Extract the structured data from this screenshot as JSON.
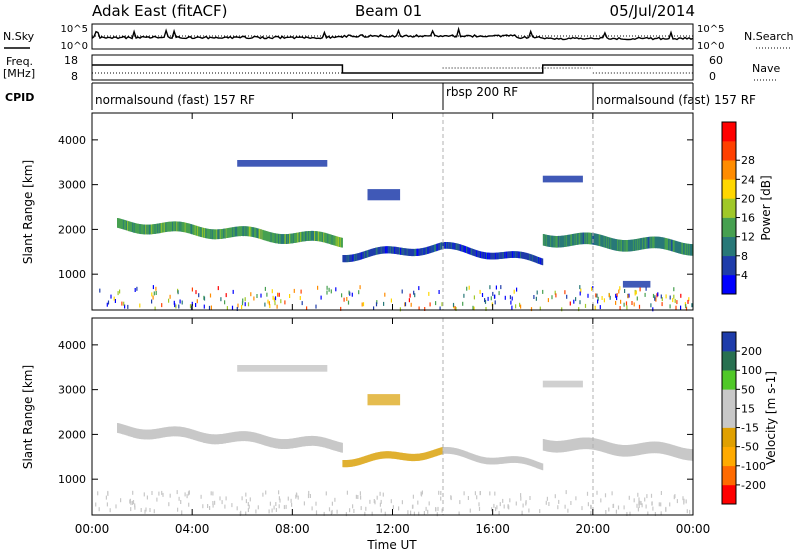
{
  "header": {
    "radar": "Adak East (fitACF)",
    "beam": "Beam 01",
    "date": "05/Jul/2014"
  },
  "labels": {
    "nsky": "N.Sky",
    "nsearch": "N.Search",
    "freq": "Freq.",
    "freq_unit": "[MHz]",
    "nave": "Nave",
    "cpid": "CPID"
  },
  "cpid_segments": [
    {
      "label": "normalsound (fast) 157 RF",
      "start_h": 0,
      "end_h": 14
    },
    {
      "label": "rbsp 200 RF",
      "start_h": 14,
      "end_h": 20
    },
    {
      "label": "normalsound (fast) 157 RF",
      "start_h": 20,
      "end_h": 24
    }
  ],
  "noise_axis": {
    "ticks": [
      "10^5",
      "10^0"
    ]
  },
  "freq_axis": {
    "left_ticks": [
      "18",
      "8"
    ],
    "right_ticks": [
      "60",
      "0"
    ]
  },
  "time_axis": {
    "label": "Time UT",
    "ticks": [
      "00:00",
      "04:00",
      "08:00",
      "12:00",
      "16:00",
      "20:00",
      "00:00"
    ]
  },
  "colors": {
    "power": [
      "#0000ff",
      "#1e3caa",
      "#287878",
      "#46a050",
      "#a0c828",
      "#ffd700",
      "#ff8c00",
      "#ff4000",
      "#ff0000"
    ],
    "velocity": [
      "#ff0000",
      "#ff6a00",
      "#ffaa00",
      "#e0b030",
      "#c8c8c8",
      "#c8c8c8",
      "#50c828",
      "#287050",
      "#1e3caa",
      "#0000ff"
    ],
    "ground_scatter": "#c8c8c8"
  },
  "chart_data": [
    {
      "type": "heatmap",
      "name": "power",
      "ylabel": "Slant Range [km]",
      "xlabel": "",
      "x_range_hours": [
        0,
        24
      ],
      "ylim": [
        200,
        4600
      ],
      "yticks": [
        1000,
        2000,
        3000,
        4000
      ],
      "colorbar": {
        "label": "Power [dB]",
        "ticks": [
          4,
          8,
          12,
          16,
          20,
          24,
          28
        ],
        "range": [
          0,
          32
        ]
      },
      "features": [
        {
          "kind": "band",
          "t": [
            1,
            10
          ],
          "range_start": 2100,
          "range_end": 1750,
          "thickness": 220,
          "level": 12
        },
        {
          "kind": "band",
          "t": [
            10,
            14
          ],
          "range_start": 1400,
          "range_end": 1600,
          "thickness": 160,
          "level": 6
        },
        {
          "kind": "band",
          "t": [
            14,
            18
          ],
          "range_start": 1600,
          "range_end": 1300,
          "thickness": 150,
          "level": 5
        },
        {
          "kind": "band",
          "t": [
            18,
            24
          ],
          "range_start": 1800,
          "range_end": 1600,
          "thickness": 260,
          "level": 10
        },
        {
          "kind": "patch",
          "t": [
            5.8,
            9.4
          ],
          "range": [
            3400,
            3550
          ],
          "level": 6
        },
        {
          "kind": "patch",
          "t": [
            11.0,
            12.3
          ],
          "range": [
            2650,
            2900
          ],
          "level": 4
        },
        {
          "kind": "patch",
          "t": [
            18.0,
            19.6
          ],
          "range": [
            3050,
            3200
          ],
          "level": 4
        },
        {
          "kind": "patch",
          "t": [
            21.2,
            22.3
          ],
          "range": [
            700,
            850
          ],
          "level": 4
        }
      ]
    },
    {
      "type": "heatmap",
      "name": "velocity",
      "ylabel": "Slant Range [km]",
      "xlabel": "Time UT",
      "x_range_hours": [
        0,
        24
      ],
      "ylim": [
        200,
        4600
      ],
      "yticks": [
        1000,
        2000,
        3000,
        4000
      ],
      "colorbar": {
        "label": "Velocity [m s-1]",
        "ticks": [
          200,
          100,
          50,
          15,
          -15,
          -50,
          -100,
          -200
        ]
      },
      "features": [
        {
          "kind": "band",
          "t": [
            1,
            10
          ],
          "range_start": 2100,
          "range_end": 1750,
          "thickness": 220,
          "level": 0
        },
        {
          "kind": "band",
          "t": [
            10,
            14
          ],
          "range_start": 1400,
          "range_end": 1600,
          "thickness": 160,
          "level": -20
        },
        {
          "kind": "band",
          "t": [
            14,
            18
          ],
          "range_start": 1600,
          "range_end": 1300,
          "thickness": 150,
          "level": 0
        },
        {
          "kind": "band",
          "t": [
            18,
            24
          ],
          "range_start": 1800,
          "range_end": 1600,
          "thickness": 260,
          "level": 0
        },
        {
          "kind": "patch",
          "t": [
            5.8,
            9.4
          ],
          "range": [
            3400,
            3550
          ],
          "level": 0
        },
        {
          "kind": "patch",
          "t": [
            11.0,
            12.3
          ],
          "range": [
            2650,
            2900
          ],
          "level": -20
        },
        {
          "kind": "patch",
          "t": [
            18.0,
            19.6
          ],
          "range": [
            3050,
            3200
          ],
          "level": 0
        }
      ]
    }
  ]
}
